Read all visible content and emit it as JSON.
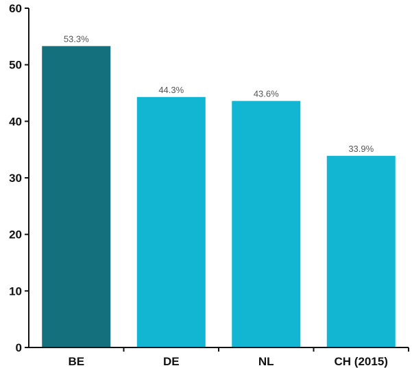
{
  "chart_data": {
    "type": "bar",
    "categories": [
      "BE",
      "DE",
      "NL",
      "CH (2015)"
    ],
    "values": [
      53.3,
      44.3,
      43.6,
      33.9
    ],
    "data_labels": [
      "53.3%",
      "44.3%",
      "43.6%",
      "33.9%"
    ],
    "title": "",
    "xlabel": "",
    "ylabel": "",
    "ylim": [
      0,
      60
    ],
    "yticks": [
      0,
      10,
      20,
      30,
      40,
      50,
      60
    ],
    "grid": false,
    "legend": "none",
    "colors": {
      "highlight": "#13707c",
      "default": "#12b6d3",
      "axis": "#111111"
    },
    "highlight_index": 0
  }
}
